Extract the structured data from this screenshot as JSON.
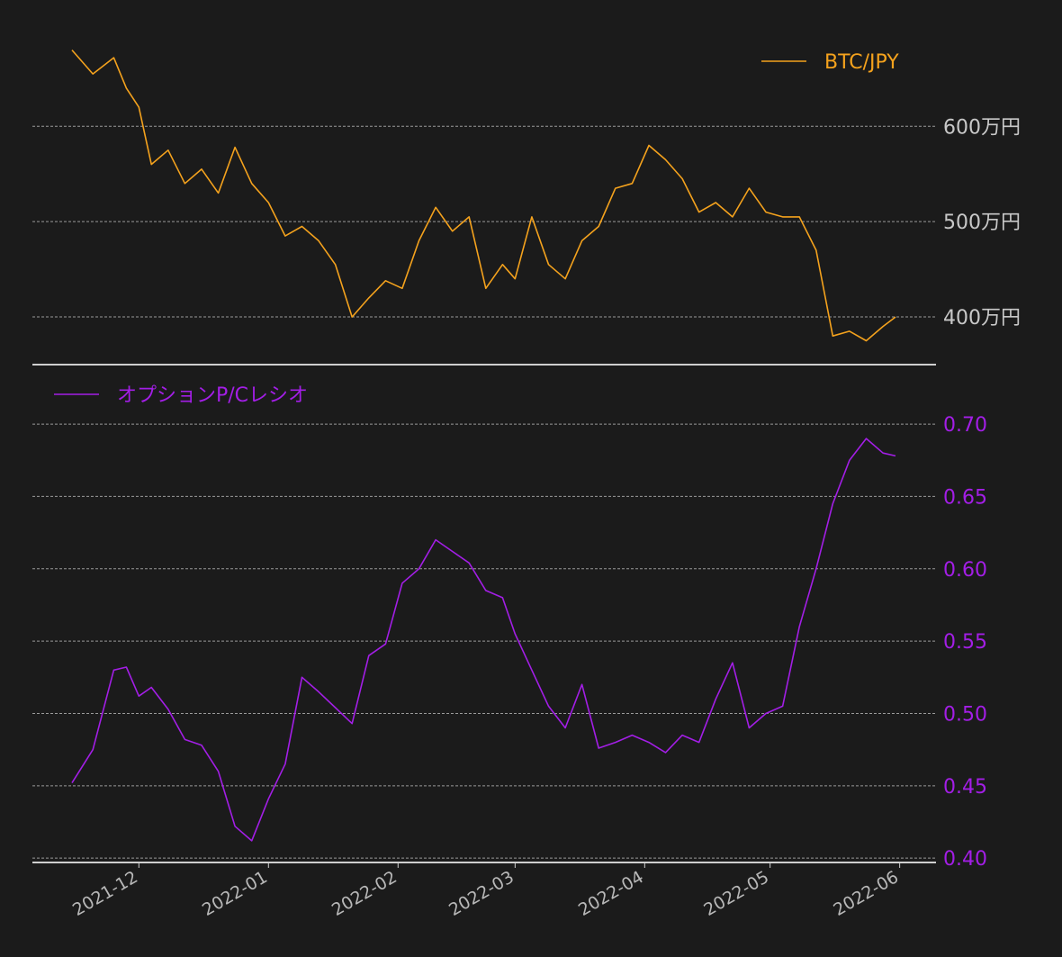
{
  "colors": {
    "background": "#1b1b1b",
    "btc": "#f4a21d",
    "pcr": "#a31ee6",
    "grid": "#9a9a9a",
    "tick_top": "#c8c8c8",
    "tick_x": "#b8b8b8"
  },
  "x_ticks": [
    "2021-12",
    "2022-01",
    "2022-02",
    "2022-03",
    "2022-04",
    "2022-05",
    "2022-06"
  ],
  "chart_data": [
    {
      "type": "line",
      "series": [
        {
          "name": "BTC/JPY",
          "unit": "万円"
        }
      ],
      "x": [
        "2021-11-15",
        "2021-11-20",
        "2021-11-25",
        "2021-11-28",
        "2021-12-01",
        "2021-12-04",
        "2021-12-08",
        "2021-12-12",
        "2021-12-16",
        "2021-12-20",
        "2021-12-24",
        "2021-12-28",
        "2022-01-01",
        "2022-01-05",
        "2022-01-09",
        "2022-01-13",
        "2022-01-17",
        "2022-01-21",
        "2022-01-25",
        "2022-01-29",
        "2022-02-02",
        "2022-02-06",
        "2022-02-10",
        "2022-02-14",
        "2022-02-18",
        "2022-02-22",
        "2022-02-26",
        "2022-03-01",
        "2022-03-05",
        "2022-03-09",
        "2022-03-13",
        "2022-03-17",
        "2022-03-21",
        "2022-03-25",
        "2022-03-29",
        "2022-04-02",
        "2022-04-06",
        "2022-04-10",
        "2022-04-14",
        "2022-04-18",
        "2022-04-22",
        "2022-04-26",
        "2022-04-30",
        "2022-05-04",
        "2022-05-08",
        "2022-05-12",
        "2022-05-16",
        "2022-05-20",
        "2022-05-24",
        "2022-05-28",
        "2022-05-31"
      ],
      "y": [
        680,
        655,
        672,
        640,
        620,
        560,
        575,
        540,
        555,
        530,
        578,
        540,
        520,
        485,
        495,
        480,
        455,
        400,
        420,
        438,
        430,
        480,
        515,
        490,
        505,
        430,
        455,
        440,
        505,
        455,
        440,
        480,
        495,
        535,
        540,
        580,
        565,
        545,
        510,
        520,
        505,
        535,
        510,
        505,
        505,
        470,
        380,
        385,
        375,
        390,
        400
      ],
      "ylim": [
        350,
        690
      ],
      "yticks": [
        {
          "value": 400,
          "label": "400万円"
        },
        {
          "value": 500,
          "label": "500万円"
        },
        {
          "value": 600,
          "label": "600万円"
        }
      ],
      "grid": true,
      "legend_position": "top-right"
    },
    {
      "type": "line",
      "series": [
        {
          "name": "オプションP/Cレシオ"
        }
      ],
      "x": [
        "2021-11-15",
        "2021-11-20",
        "2021-11-25",
        "2021-11-28",
        "2021-12-01",
        "2021-12-04",
        "2021-12-08",
        "2021-12-12",
        "2021-12-16",
        "2021-12-20",
        "2021-12-24",
        "2021-12-28",
        "2022-01-01",
        "2022-01-05",
        "2022-01-09",
        "2022-01-13",
        "2022-01-17",
        "2022-01-21",
        "2022-01-25",
        "2022-01-29",
        "2022-02-02",
        "2022-02-06",
        "2022-02-10",
        "2022-02-14",
        "2022-02-18",
        "2022-02-22",
        "2022-02-26",
        "2022-03-01",
        "2022-03-05",
        "2022-03-09",
        "2022-03-13",
        "2022-03-17",
        "2022-03-21",
        "2022-03-25",
        "2022-03-29",
        "2022-04-02",
        "2022-04-06",
        "2022-04-10",
        "2022-04-14",
        "2022-04-18",
        "2022-04-22",
        "2022-04-26",
        "2022-04-30",
        "2022-05-04",
        "2022-05-08",
        "2022-05-12",
        "2022-05-16",
        "2022-05-20",
        "2022-05-24",
        "2022-05-28",
        "2022-05-31"
      ],
      "y": [
        0.452,
        0.475,
        0.53,
        0.532,
        0.512,
        0.518,
        0.503,
        0.482,
        0.478,
        0.46,
        0.422,
        0.412,
        0.441,
        0.465,
        0.525,
        0.515,
        0.504,
        0.493,
        0.54,
        0.548,
        0.59,
        0.6,
        0.62,
        0.612,
        0.604,
        0.585,
        0.58,
        0.555,
        0.53,
        0.505,
        0.49,
        0.52,
        0.476,
        0.48,
        0.485,
        0.48,
        0.473,
        0.485,
        0.48,
        0.51,
        0.535,
        0.49,
        0.5,
        0.505,
        0.56,
        0.6,
        0.645,
        0.675,
        0.69,
        0.68,
        0.678
      ],
      "ylim": [
        0.397,
        0.738
      ],
      "yticks": [
        {
          "value": 0.4,
          "label": "0.40"
        },
        {
          "value": 0.45,
          "label": "0.45"
        },
        {
          "value": 0.5,
          "label": "0.50"
        },
        {
          "value": 0.55,
          "label": "0.55"
        },
        {
          "value": 0.6,
          "label": "0.60"
        },
        {
          "value": 0.65,
          "label": "0.65"
        },
        {
          "value": 0.7,
          "label": "0.70"
        }
      ],
      "grid": true,
      "legend_position": "top-left"
    }
  ]
}
